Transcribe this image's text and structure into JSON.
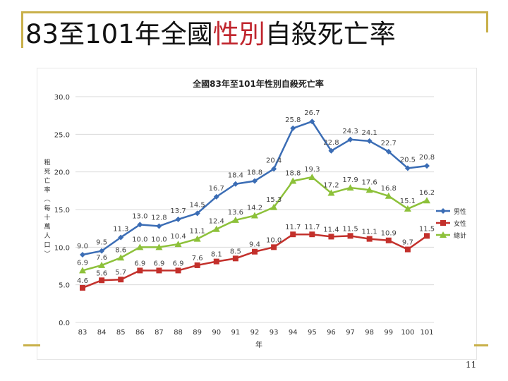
{
  "slide": {
    "title_part1": "83至101年全國",
    "title_highlight": "性別",
    "title_part2": "自殺死亡率",
    "page_number": "11"
  },
  "colors": {
    "male": "#3b6db5",
    "female": "#c3302b",
    "total": "#8dc13a",
    "accent": "#c9b04a"
  },
  "chart_data": {
    "type": "line",
    "title": "全國83年至101年性別自殺死亡率",
    "xlabel": "年",
    "ylabel": "粗死亡率(每十萬人口)",
    "ylim": [
      0,
      30
    ],
    "yticks": [
      "0.0",
      "5.0",
      "10.0",
      "15.0",
      "20.0",
      "25.0",
      "30.0"
    ],
    "categories": [
      "83",
      "84",
      "85",
      "86",
      "87",
      "88",
      "89",
      "90",
      "91",
      "92",
      "93",
      "94",
      "95",
      "96",
      "97",
      "98",
      "99",
      "100",
      "101"
    ],
    "series": [
      {
        "name": "男性",
        "values": [
          9.0,
          9.5,
          11.3,
          13.0,
          12.8,
          13.7,
          14.5,
          16.7,
          18.4,
          18.8,
          20.4,
          25.8,
          26.7,
          22.8,
          24.3,
          24.1,
          22.7,
          20.5,
          20.8
        ]
      },
      {
        "name": "女性",
        "values": [
          4.6,
          5.6,
          5.7,
          6.9,
          6.9,
          6.9,
          7.6,
          8.1,
          8.5,
          9.4,
          10.0,
          11.7,
          11.7,
          11.4,
          11.5,
          11.1,
          10.9,
          9.7,
          11.5
        ]
      },
      {
        "name": "總計",
        "values": [
          6.9,
          7.6,
          8.6,
          10.0,
          10.0,
          10.4,
          11.1,
          12.4,
          13.6,
          14.2,
          15.3,
          18.8,
          19.3,
          17.2,
          17.9,
          17.6,
          16.8,
          15.1,
          16.2
        ]
      }
    ]
  }
}
